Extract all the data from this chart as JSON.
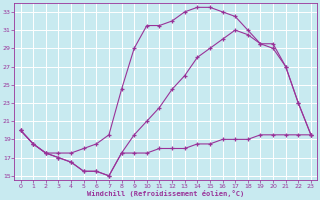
{
  "bg_color": "#c8eaf0",
  "grid_color": "#ffffff",
  "line_color": "#993399",
  "xlabel": "Windchill (Refroidissement éolien,°C)",
  "xlim": [
    -0.5,
    23.5
  ],
  "ylim": [
    14.5,
    34
  ],
  "xticks": [
    0,
    1,
    2,
    3,
    4,
    5,
    6,
    7,
    8,
    9,
    10,
    11,
    12,
    13,
    14,
    15,
    16,
    17,
    18,
    19,
    20,
    21,
    22,
    23
  ],
  "yticks": [
    15,
    17,
    19,
    21,
    23,
    25,
    27,
    29,
    31,
    33
  ],
  "curve1_x": [
    0,
    1,
    2,
    3,
    4,
    5,
    6,
    7,
    8,
    9,
    10,
    11,
    12,
    13,
    14,
    15,
    16,
    17,
    18,
    19,
    20,
    21,
    22,
    23
  ],
  "curve1_y": [
    20.0,
    18.5,
    17.5,
    17.5,
    17.5,
    18.0,
    18.5,
    19.5,
    24.5,
    29.0,
    31.5,
    31.5,
    32.0,
    33.0,
    33.5,
    33.5,
    33.0,
    32.5,
    31.0,
    29.5,
    29.0,
    27.0,
    23.0,
    19.5
  ],
  "curve2_x": [
    0,
    1,
    2,
    3,
    4,
    5,
    6,
    7,
    8,
    9,
    10,
    11,
    12,
    13,
    14,
    15,
    16,
    17,
    18,
    19,
    20,
    21,
    22,
    23
  ],
  "curve2_y": [
    20.0,
    18.5,
    17.5,
    17.0,
    16.5,
    15.5,
    15.5,
    15.0,
    17.5,
    19.5,
    21.0,
    22.5,
    24.5,
    26.0,
    28.0,
    29.0,
    30.0,
    31.0,
    30.5,
    29.5,
    29.5,
    27.0,
    23.0,
    19.5
  ],
  "curve3_x": [
    0,
    1,
    2,
    3,
    4,
    5,
    6,
    7,
    8,
    9,
    10,
    11,
    12,
    13,
    14,
    15,
    16,
    17,
    18,
    19,
    20,
    21,
    22,
    23
  ],
  "curve3_y": [
    20.0,
    18.5,
    17.5,
    17.0,
    16.5,
    15.5,
    15.5,
    15.0,
    17.5,
    17.5,
    17.5,
    18.0,
    18.0,
    18.0,
    18.5,
    18.5,
    19.0,
    19.0,
    19.0,
    19.5,
    19.5,
    19.5,
    19.5,
    19.5
  ]
}
